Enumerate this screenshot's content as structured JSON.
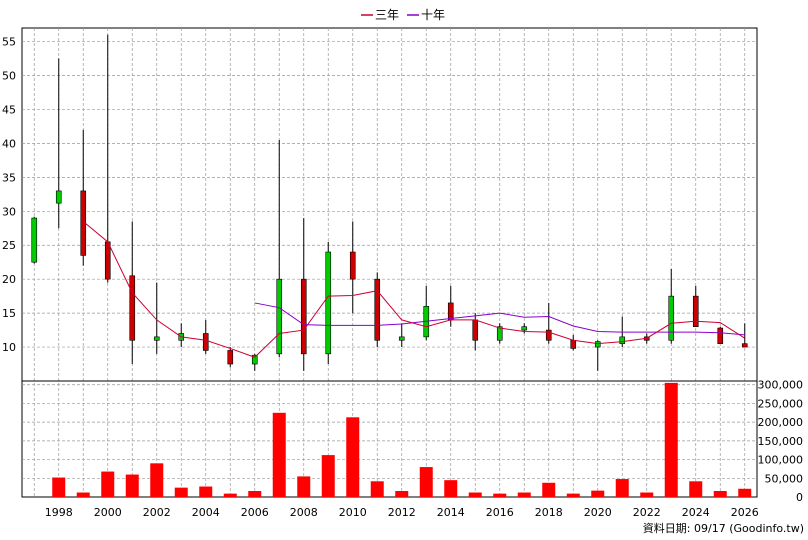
{
  "colors": {
    "up": "#00cc00",
    "down": "#cc0000",
    "volume": "#ff0000",
    "ma3": "#cc0033",
    "ma10": "#8800cc",
    "grid": "#999999"
  },
  "legend": {
    "ma3_label": "三年",
    "ma10_label": "十年"
  },
  "credit": "資料日期: 09/17 (Goodinfo.tw)",
  "chart_data": {
    "type": "candlestick",
    "xlim": [
      1996.5,
      2026.5
    ],
    "price_ylim": [
      5,
      57
    ],
    "price_ticks": [
      10,
      15,
      20,
      25,
      30,
      35,
      40,
      45,
      50,
      55
    ],
    "volume_ylim": [
      0,
      310000
    ],
    "volume_ticks": [
      0,
      50000,
      100000,
      150000,
      200000,
      250000,
      300000
    ],
    "volume_tick_labels": [
      "0",
      "50,000",
      "100,000",
      "150,000",
      "200,000",
      "250,000",
      "300,000"
    ],
    "x_tick_labels": [
      "1998",
      "2000",
      "2002",
      "2004",
      "2006",
      "2008",
      "2010",
      "2012",
      "2014",
      "2016",
      "2018",
      "2020",
      "2022",
      "2024",
      "2026"
    ],
    "candles": [
      {
        "year": 1997,
        "open": 22.5,
        "high": 29.2,
        "low": 22.3,
        "close": 29.0
      },
      {
        "year": 1998,
        "open": 31.2,
        "high": 52.5,
        "low": 27.5,
        "close": 33.0
      },
      {
        "year": 1999,
        "open": 33.0,
        "high": 42.0,
        "low": 22.0,
        "close": 23.5
      },
      {
        "year": 2000,
        "open": 25.5,
        "high": 56.0,
        "low": 19.5,
        "close": 20.0
      },
      {
        "year": 2001,
        "open": 20.5,
        "high": 28.5,
        "low": 7.5,
        "close": 11.0
      },
      {
        "year": 2002,
        "open": 11.0,
        "high": 19.5,
        "low": 9.0,
        "close": 11.5
      },
      {
        "year": 2003,
        "open": 11.0,
        "high": 13.5,
        "low": 10.0,
        "close": 12.0
      },
      {
        "year": 2004,
        "open": 12.0,
        "high": 14.0,
        "low": 9.0,
        "close": 9.5
      },
      {
        "year": 2005,
        "open": 9.5,
        "high": 10.0,
        "low": 7.0,
        "close": 7.5
      },
      {
        "year": 2006,
        "open": 7.5,
        "high": 9.0,
        "low": 6.5,
        "close": 8.8
      },
      {
        "year": 2007,
        "open": 9.0,
        "high": 40.5,
        "low": 8.5,
        "close": 20.0
      },
      {
        "year": 2008,
        "open": 20.0,
        "high": 29.0,
        "low": 6.5,
        "close": 9.0
      },
      {
        "year": 2009,
        "open": 9.0,
        "high": 25.5,
        "low": 7.5,
        "close": 24.0
      },
      {
        "year": 2010,
        "open": 24.0,
        "high": 28.5,
        "low": 15.0,
        "close": 20.0
      },
      {
        "year": 2011,
        "open": 20.0,
        "high": 21.0,
        "low": 10.0,
        "close": 11.0
      },
      {
        "year": 2012,
        "open": 11.0,
        "high": 13.5,
        "low": 10.0,
        "close": 11.5
      },
      {
        "year": 2013,
        "open": 11.5,
        "high": 19.0,
        "low": 11.0,
        "close": 16.0
      },
      {
        "year": 2014,
        "open": 16.5,
        "high": 19.0,
        "low": 13.0,
        "close": 14.0
      },
      {
        "year": 2015,
        "open": 14.0,
        "high": 15.0,
        "low": 9.5,
        "close": 11.0
      },
      {
        "year": 2016,
        "open": 11.0,
        "high": 13.5,
        "low": 10.5,
        "close": 13.0
      },
      {
        "year": 2017,
        "open": 12.5,
        "high": 13.5,
        "low": 12.0,
        "close": 13.0
      },
      {
        "year": 2018,
        "open": 12.5,
        "high": 16.5,
        "low": 10.5,
        "close": 11.0
      },
      {
        "year": 2019,
        "open": 11.0,
        "high": 11.8,
        "low": 9.5,
        "close": 9.8
      },
      {
        "year": 2020,
        "open": 10.0,
        "high": 11.0,
        "low": 6.5,
        "close": 10.8
      },
      {
        "year": 2021,
        "open": 10.5,
        "high": 14.5,
        "low": 10.0,
        "close": 11.5
      },
      {
        "year": 2022,
        "open": 11.5,
        "high": 12.0,
        "low": 10.5,
        "close": 11.0
      },
      {
        "year": 2023,
        "open": 11.0,
        "high": 21.5,
        "low": 10.5,
        "close": 17.5
      },
      {
        "year": 2024,
        "open": 17.5,
        "high": 19.0,
        "low": 13.0,
        "close": 13.0
      },
      {
        "year": 2025,
        "open": 12.8,
        "high": 13.0,
        "low": 10.5,
        "close": 10.5
      },
      {
        "year": 2026,
        "open": 10.5,
        "high": 13.5,
        "low": 10.0,
        "close": 10.0
      }
    ],
    "volume": [
      {
        "year": 1998,
        "value": 52000
      },
      {
        "year": 1999,
        "value": 12000
      },
      {
        "year": 2000,
        "value": 68000
      },
      {
        "year": 2001,
        "value": 60000
      },
      {
        "year": 2002,
        "value": 90000
      },
      {
        "year": 2003,
        "value": 25000
      },
      {
        "year": 2004,
        "value": 28000
      },
      {
        "year": 2005,
        "value": 9000
      },
      {
        "year": 2006,
        "value": 16000
      },
      {
        "year": 2007,
        "value": 225000
      },
      {
        "year": 2008,
        "value": 55000
      },
      {
        "year": 2009,
        "value": 112000
      },
      {
        "year": 2010,
        "value": 213000
      },
      {
        "year": 2011,
        "value": 42000
      },
      {
        "year": 2012,
        "value": 16000
      },
      {
        "year": 2013,
        "value": 80000
      },
      {
        "year": 2014,
        "value": 45000
      },
      {
        "year": 2015,
        "value": 12000
      },
      {
        "year": 2016,
        "value": 9000
      },
      {
        "year": 2017,
        "value": 12000
      },
      {
        "year": 2018,
        "value": 38000
      },
      {
        "year": 2019,
        "value": 9000
      },
      {
        "year": 2020,
        "value": 17000
      },
      {
        "year": 2021,
        "value": 48000
      },
      {
        "year": 2022,
        "value": 12000
      },
      {
        "year": 2023,
        "value": 305000
      },
      {
        "year": 2024,
        "value": 42000
      },
      {
        "year": 2025,
        "value": 16000
      },
      {
        "year": 2026,
        "value": 22000
      }
    ],
    "ma3": [
      {
        "year": 1999,
        "value": 28.5
      },
      {
        "year": 2000,
        "value": 25.5
      },
      {
        "year": 2001,
        "value": 18.0
      },
      {
        "year": 2002,
        "value": 14.0
      },
      {
        "year": 2003,
        "value": 11.5
      },
      {
        "year": 2004,
        "value": 11.0
      },
      {
        "year": 2005,
        "value": 9.8
      },
      {
        "year": 2006,
        "value": 8.5
      },
      {
        "year": 2007,
        "value": 12.0
      },
      {
        "year": 2008,
        "value": 12.5
      },
      {
        "year": 2009,
        "value": 17.5
      },
      {
        "year": 2010,
        "value": 17.6
      },
      {
        "year": 2011,
        "value": 18.3
      },
      {
        "year": 2012,
        "value": 14.0
      },
      {
        "year": 2013,
        "value": 13.0
      },
      {
        "year": 2014,
        "value": 14.0
      },
      {
        "year": 2015,
        "value": 14.0
      },
      {
        "year": 2016,
        "value": 12.8
      },
      {
        "year": 2017,
        "value": 12.3
      },
      {
        "year": 2018,
        "value": 12.2
      },
      {
        "year": 2019,
        "value": 11.0
      },
      {
        "year": 2020,
        "value": 10.5
      },
      {
        "year": 2021,
        "value": 10.8
      },
      {
        "year": 2022,
        "value": 11.3
      },
      {
        "year": 2023,
        "value": 13.5
      },
      {
        "year": 2024,
        "value": 13.8
      },
      {
        "year": 2025,
        "value": 13.6
      },
      {
        "year": 2026,
        "value": 11.3
      }
    ],
    "ma10": [
      {
        "year": 2006,
        "value": 16.5
      },
      {
        "year": 2007,
        "value": 15.8
      },
      {
        "year": 2008,
        "value": 13.3
      },
      {
        "year": 2009,
        "value": 13.2
      },
      {
        "year": 2010,
        "value": 13.2
      },
      {
        "year": 2011,
        "value": 13.2
      },
      {
        "year": 2012,
        "value": 13.4
      },
      {
        "year": 2013,
        "value": 13.8
      },
      {
        "year": 2014,
        "value": 14.2
      },
      {
        "year": 2015,
        "value": 14.6
      },
      {
        "year": 2016,
        "value": 15.0
      },
      {
        "year": 2017,
        "value": 14.4
      },
      {
        "year": 2018,
        "value": 14.5
      },
      {
        "year": 2019,
        "value": 13.1
      },
      {
        "year": 2020,
        "value": 12.3
      },
      {
        "year": 2021,
        "value": 12.2
      },
      {
        "year": 2022,
        "value": 12.2
      },
      {
        "year": 2023,
        "value": 12.2
      },
      {
        "year": 2024,
        "value": 12.2
      },
      {
        "year": 2025,
        "value": 12.1
      },
      {
        "year": 2026,
        "value": 11.8
      }
    ]
  }
}
